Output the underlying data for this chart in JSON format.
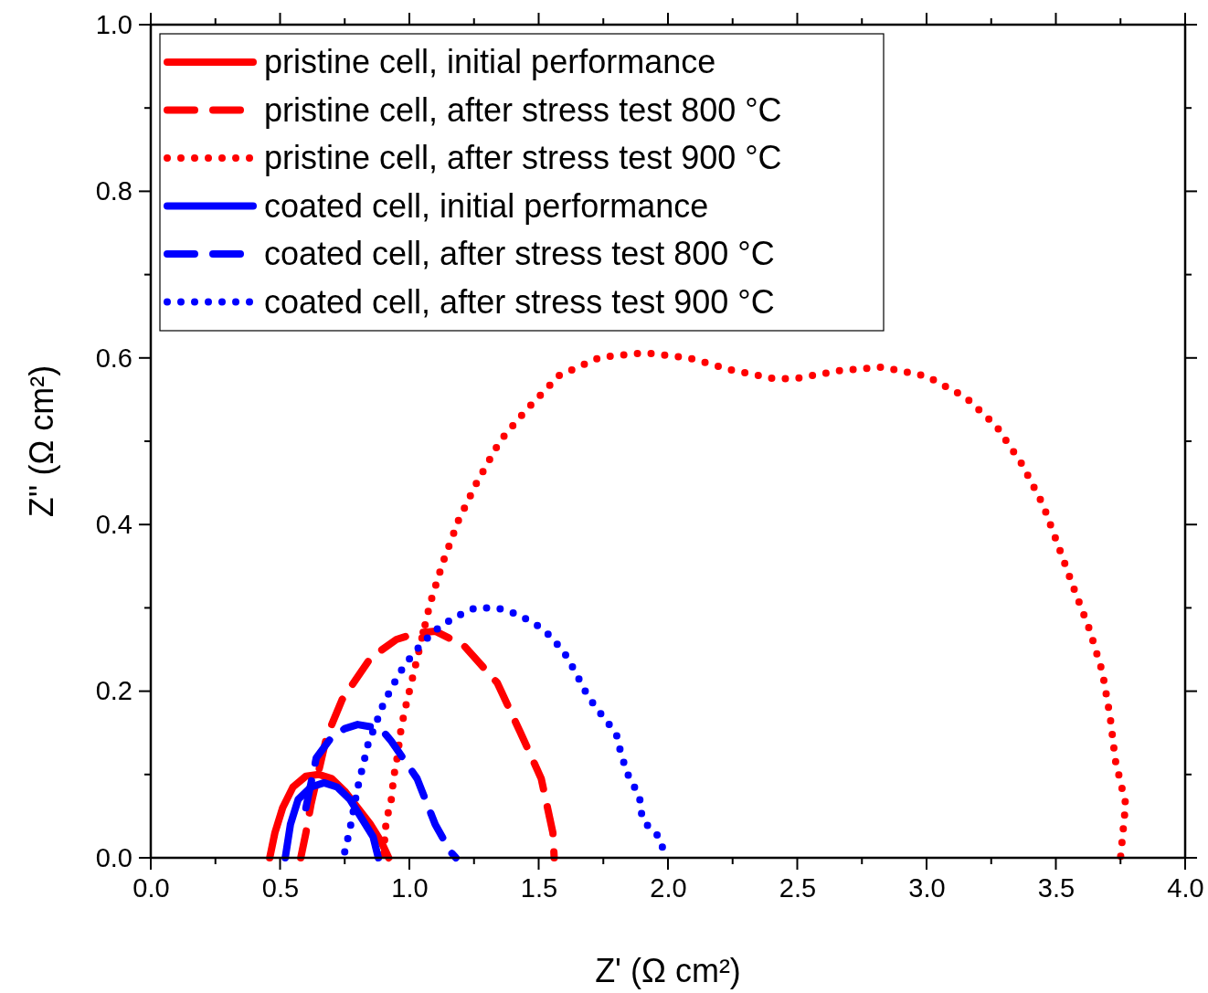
{
  "chart_data": {
    "type": "line",
    "xlabel": "Z' (Ω cm²)",
    "ylabel": "Z'' (Ω cm²)",
    "xlim": [
      0,
      4
    ],
    "ylim": [
      0,
      1
    ],
    "xticks": [
      {
        "value": 0,
        "label": "0.0"
      },
      {
        "value": 0.25,
        "label": null
      },
      {
        "value": 0.5,
        "label": "0.5"
      },
      {
        "value": 0.75,
        "label": null
      },
      {
        "value": 1,
        "label": "1.0"
      },
      {
        "value": 1.25,
        "label": null
      },
      {
        "value": 1.5,
        "label": "1.5"
      },
      {
        "value": 1.75,
        "label": null
      },
      {
        "value": 2,
        "label": "2.0"
      },
      {
        "value": 2.25,
        "label": null
      },
      {
        "value": 2.5,
        "label": "2.5"
      },
      {
        "value": 2.75,
        "label": null
      },
      {
        "value": 3,
        "label": "3.0"
      },
      {
        "value": 3.25,
        "label": null
      },
      {
        "value": 3.5,
        "label": "3.5"
      },
      {
        "value": 3.75,
        "label": null
      },
      {
        "value": 4,
        "label": "4.0"
      }
    ],
    "yticks": [
      {
        "value": 0,
        "label": "0.0"
      },
      {
        "value": 0.1,
        "label": null
      },
      {
        "value": 0.2,
        "label": "0.2"
      },
      {
        "value": 0.3,
        "label": null
      },
      {
        "value": 0.4,
        "label": "0.4"
      },
      {
        "value": 0.5,
        "label": null
      },
      {
        "value": 0.6,
        "label": "0.6"
      },
      {
        "value": 0.7,
        "label": null
      },
      {
        "value": 0.8,
        "label": "0.8"
      },
      {
        "value": 0.9,
        "label": null
      },
      {
        "value": 1,
        "label": "1.0"
      }
    ],
    "grid": false,
    "legend": "top left",
    "marker": "none",
    "series": [
      {
        "name": "pristine cell, initial performance",
        "color": "#ff0000",
        "line_style": "solid",
        "x": [
          0.46,
          0.48,
          0.51,
          0.55,
          0.6,
          0.65,
          0.7,
          0.75,
          0.8,
          0.85,
          0.89,
          0.92
        ],
        "values": [
          0,
          0.03,
          0.06,
          0.085,
          0.098,
          0.1,
          0.095,
          0.08,
          0.06,
          0.04,
          0.02,
          0
        ]
      },
      {
        "name": "pristine cell, after stress test 800 °C",
        "color": "#ff0000",
        "line_style": "dashed",
        "x": [
          0.58,
          0.6,
          0.62,
          0.68,
          0.74,
          0.85,
          0.95,
          1.03,
          1.1,
          1.21,
          1.34,
          1.43,
          1.51,
          1.555,
          1.56
        ],
        "values": [
          0,
          0.03,
          0.065,
          0.145,
          0.19,
          0.24,
          0.262,
          0.27,
          0.272,
          0.255,
          0.21,
          0.15,
          0.095,
          0.03,
          0
        ]
      },
      {
        "name": "pristine cell, after stress test 900 °C",
        "color": "#ff0000",
        "line_style": "dotted",
        "x": [
          0.9,
          0.91,
          0.93,
          0.94,
          0.955,
          0.965,
          0.98,
          1.0,
          1.02,
          1.08,
          1.13,
          1.19,
          1.26,
          1.35,
          1.45,
          1.58,
          1.74,
          1.91,
          2.08,
          2.24,
          2.41,
          2.49,
          2.67,
          2.83,
          3.0,
          3.15,
          3.27,
          3.37,
          3.45,
          3.51,
          3.57,
          3.63,
          3.68,
          3.71,
          3.73,
          3.77,
          3.75
        ],
        "values": [
          0.005,
          0.043,
          0.07,
          0.098,
          0.124,
          0.149,
          0.174,
          0.2,
          0.226,
          0.305,
          0.355,
          0.405,
          0.45,
          0.5,
          0.537,
          0.579,
          0.601,
          0.606,
          0.6,
          0.586,
          0.575,
          0.575,
          0.585,
          0.589,
          0.578,
          0.553,
          0.518,
          0.472,
          0.424,
          0.374,
          0.323,
          0.274,
          0.223,
          0.169,
          0.117,
          0.065,
          0.0
        ]
      },
      {
        "name": "coated cell, initial performance",
        "color": "#0000ff",
        "line_style": "solid",
        "x": [
          0.52,
          0.54,
          0.57,
          0.62,
          0.67,
          0.72,
          0.77,
          0.82,
          0.86,
          0.88
        ],
        "values": [
          0,
          0.04,
          0.07,
          0.085,
          0.09,
          0.085,
          0.07,
          0.045,
          0.025,
          0
        ]
      },
      {
        "name": "coated cell, after stress test 800 °C",
        "color": "#0000ff",
        "line_style": "dashed",
        "x": [
          0.6,
          0.64,
          0.7,
          0.75,
          0.8,
          0.89,
          0.93,
          1.03,
          1.1,
          1.16,
          1.18
        ],
        "values": [
          0.06,
          0.12,
          0.145,
          0.155,
          0.16,
          0.155,
          0.14,
          0.095,
          0.04,
          0.007,
          0
        ]
      },
      {
        "name": "coated cell, after stress test 900 °C",
        "color": "#0000ff",
        "line_style": "dotted",
        "x": [
          0.75,
          0.77,
          0.8,
          0.82,
          0.84,
          0.9,
          0.94,
          0.98,
          1.035,
          1.095,
          1.17,
          1.255,
          1.34,
          1.42,
          1.49,
          1.55,
          1.61,
          1.65,
          1.69,
          1.74,
          1.8,
          1.82,
          1.845,
          1.89,
          1.9,
          1.93,
          1.97,
          1.985
        ],
        "values": [
          0.007,
          0.034,
          0.084,
          0.11,
          0.136,
          0.185,
          0.209,
          0.231,
          0.252,
          0.272,
          0.288,
          0.3,
          0.3,
          0.292,
          0.28,
          0.265,
          0.241,
          0.218,
          0.194,
          0.173,
          0.149,
          0.123,
          0.1,
          0.073,
          0.048,
          0.035,
          0.024,
          0.004
        ]
      }
    ]
  }
}
